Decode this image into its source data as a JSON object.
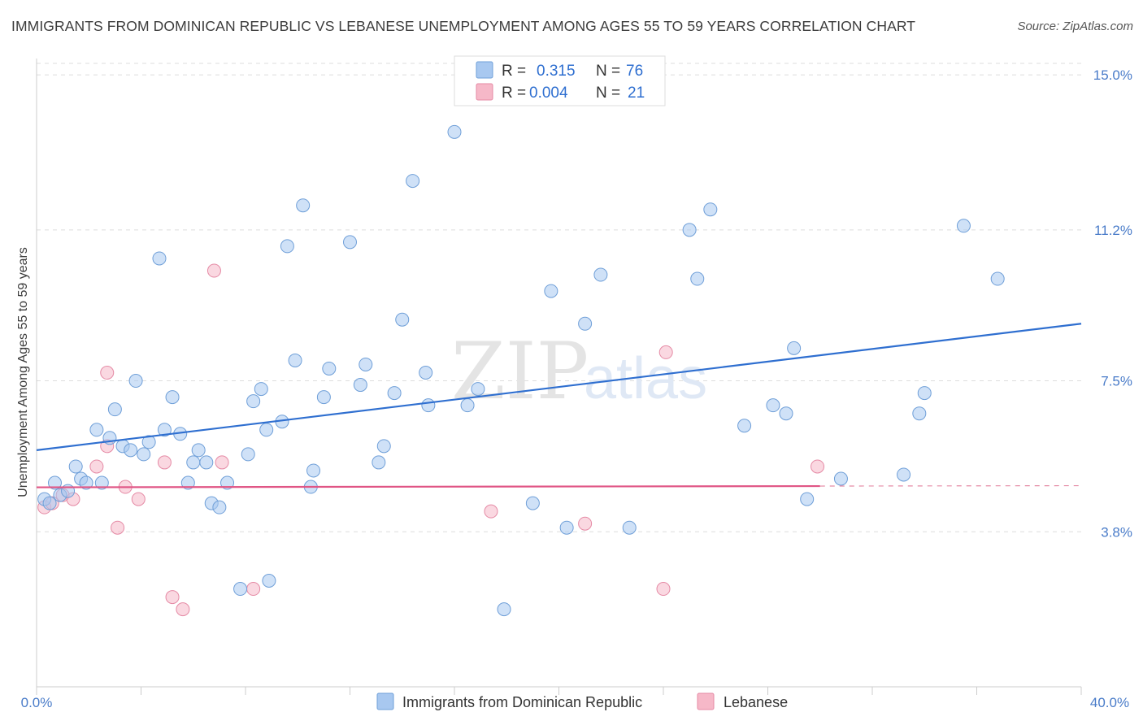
{
  "title": "IMMIGRANTS FROM DOMINICAN REPUBLIC VS LEBANESE UNEMPLOYMENT AMONG AGES 55 TO 59 YEARS CORRELATION CHART",
  "source": "Source: ZipAtlas.com",
  "watermark": {
    "zip": "ZIP",
    "atlas": "atlas"
  },
  "colors": {
    "blue_fill": "#a8c8f0",
    "blue_stroke": "#6f9fd8",
    "blue_line": "#2f6fd0",
    "pink_fill": "#f6b8c8",
    "pink_stroke": "#e58aa5",
    "pink_line": "#e05585",
    "tick_text": "#4a7cc9",
    "grid": "#dddddd"
  },
  "legend": {
    "rows": [
      {
        "r_label": "R =",
        "r_value": "0.315",
        "n_label": "N =",
        "n_value": "76",
        "series": "blue"
      },
      {
        "r_label": "R =",
        "r_value": "0.004",
        "n_label": "N =",
        "n_value": "21",
        "series": "pink"
      }
    ]
  },
  "bottom_legend": [
    {
      "label": "Immigrants from Dominican Republic",
      "series": "blue"
    },
    {
      "label": "Lebanese",
      "series": "pink"
    }
  ],
  "chart_data": {
    "type": "scatter",
    "title": "IMMIGRANTS FROM DOMINICAN REPUBLIC VS LEBANESE UNEMPLOYMENT AMONG AGES 55 TO 59 YEARS CORRELATION CHART",
    "xlabel": "",
    "ylabel": "Unemployment Among Ages 55 to 59 years",
    "xlim": [
      0,
      40
    ],
    "ylim": [
      0,
      15.4
    ],
    "x_tick_labels": [
      "0.0%",
      "40.0%"
    ],
    "y_ticks": [
      3.8,
      7.5,
      11.2,
      15.0
    ],
    "y_tick_labels": [
      "3.8%",
      "7.5%",
      "11.2%",
      "15.0%"
    ],
    "grid": true,
    "legend_position": "top-center",
    "series": [
      {
        "name": "Immigrants from Dominican Republic",
        "color": "blue",
        "R": 0.315,
        "N": 76,
        "trend": {
          "x": [
            0,
            40
          ],
          "y": [
            5.8,
            8.9
          ]
        },
        "points": [
          [
            0.3,
            4.6
          ],
          [
            0.5,
            4.5
          ],
          [
            0.7,
            5.0
          ],
          [
            0.9,
            4.7
          ],
          [
            1.2,
            4.8
          ],
          [
            1.5,
            5.4
          ],
          [
            1.7,
            5.1
          ],
          [
            1.9,
            5.0
          ],
          [
            2.3,
            6.3
          ],
          [
            2.5,
            5.0
          ],
          [
            2.8,
            6.1
          ],
          [
            3.0,
            6.8
          ],
          [
            3.3,
            5.9
          ],
          [
            3.6,
            5.8
          ],
          [
            3.8,
            7.5
          ],
          [
            4.1,
            5.7
          ],
          [
            4.3,
            6.0
          ],
          [
            4.7,
            10.5
          ],
          [
            4.9,
            6.3
          ],
          [
            5.2,
            7.1
          ],
          [
            5.5,
            6.2
          ],
          [
            5.8,
            5.0
          ],
          [
            6.0,
            5.5
          ],
          [
            6.2,
            5.8
          ],
          [
            6.5,
            5.5
          ],
          [
            6.7,
            4.5
          ],
          [
            7.0,
            4.4
          ],
          [
            7.3,
            5.0
          ],
          [
            7.8,
            2.4
          ],
          [
            8.1,
            5.7
          ],
          [
            8.3,
            7.0
          ],
          [
            8.6,
            7.3
          ],
          [
            8.9,
            2.6
          ],
          [
            8.8,
            6.3
          ],
          [
            9.4,
            6.5
          ],
          [
            9.6,
            10.8
          ],
          [
            9.9,
            8.0
          ],
          [
            10.2,
            11.8
          ],
          [
            10.5,
            4.9
          ],
          [
            10.6,
            5.3
          ],
          [
            11.0,
            7.1
          ],
          [
            11.2,
            7.8
          ],
          [
            12.0,
            10.9
          ],
          [
            12.4,
            7.4
          ],
          [
            12.6,
            7.9
          ],
          [
            13.1,
            5.5
          ],
          [
            13.3,
            5.9
          ],
          [
            13.7,
            7.2
          ],
          [
            14.0,
            9.0
          ],
          [
            14.4,
            12.4
          ],
          [
            14.9,
            7.7
          ],
          [
            15.0,
            6.9
          ],
          [
            16.0,
            13.6
          ],
          [
            16.5,
            6.9
          ],
          [
            16.9,
            7.3
          ],
          [
            17.9,
            1.9
          ],
          [
            19.0,
            4.5
          ],
          [
            19.7,
            9.7
          ],
          [
            20.3,
            3.9
          ],
          [
            21.0,
            8.9
          ],
          [
            21.6,
            10.1
          ],
          [
            22.7,
            3.9
          ],
          [
            25.0,
            11.2
          ],
          [
            25.3,
            10.0
          ],
          [
            25.8,
            11.7
          ],
          [
            27.1,
            6.4
          ],
          [
            28.2,
            6.9
          ],
          [
            28.7,
            6.7
          ],
          [
            29.0,
            8.3
          ],
          [
            29.5,
            4.6
          ],
          [
            30.8,
            5.1
          ],
          [
            33.2,
            5.2
          ],
          [
            33.8,
            6.7
          ],
          [
            34.0,
            7.2
          ],
          [
            35.5,
            11.3
          ],
          [
            36.8,
            10.0
          ]
        ]
      },
      {
        "name": "Lebanese",
        "color": "pink",
        "R": 0.004,
        "N": 21,
        "trend": {
          "x": [
            0,
            30
          ],
          "y": [
            4.89,
            4.92
          ]
        },
        "trend_dashed_extension": {
          "x": [
            30,
            40
          ],
          "y": [
            4.92,
            4.93
          ]
        },
        "points": [
          [
            0.3,
            4.4
          ],
          [
            0.6,
            4.5
          ],
          [
            1.0,
            4.7
          ],
          [
            1.4,
            4.6
          ],
          [
            2.3,
            5.4
          ],
          [
            2.7,
            7.7
          ],
          [
            2.7,
            5.9
          ],
          [
            3.1,
            3.9
          ],
          [
            3.4,
            4.9
          ],
          [
            3.9,
            4.6
          ],
          [
            4.9,
            5.5
          ],
          [
            5.2,
            2.2
          ],
          [
            5.6,
            1.9
          ],
          [
            6.8,
            10.2
          ],
          [
            7.1,
            5.5
          ],
          [
            8.3,
            2.4
          ],
          [
            17.4,
            4.3
          ],
          [
            21.0,
            4.0
          ],
          [
            24.0,
            2.4
          ],
          [
            24.1,
            8.2
          ],
          [
            29.9,
            5.4
          ]
        ]
      }
    ]
  }
}
